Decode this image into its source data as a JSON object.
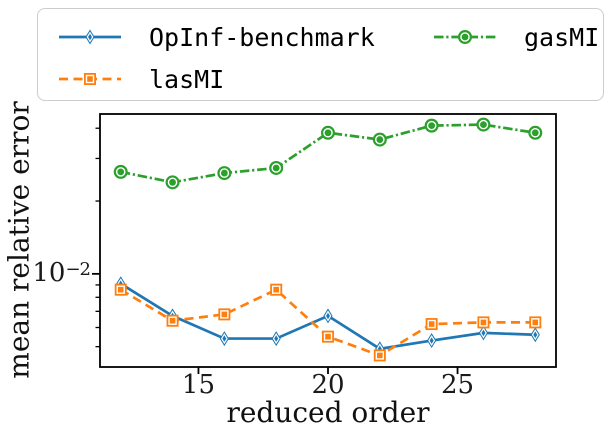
{
  "figure": {
    "background": "#ffffff"
  },
  "legend": {
    "border_color": "#cccccc",
    "position": "upper center, above axes"
  },
  "chart_data": {
    "type": "line",
    "title": "",
    "xlabel": "reduced order",
    "ylabel": "mean relative error",
    "x_scale": "linear",
    "y_scale": "log",
    "grid": false,
    "xlim": [
      11.2,
      28.8
    ],
    "ylim": [
      0.00412,
      0.0458
    ],
    "x_ticks": [
      15,
      20,
      25
    ],
    "y_major_ticks": [
      0.01
    ],
    "y_tick_label": {
      "base": "10",
      "exp": "−2"
    },
    "y_minor_ticks": [
      0.005,
      0.006,
      0.007,
      0.008,
      0.009,
      0.02,
      0.03,
      0.04
    ],
    "x": [
      12,
      14,
      16,
      18,
      20,
      22,
      24,
      26,
      28
    ],
    "series": [
      {
        "name": "OpInf-benchmark",
        "color": "#1f77b4",
        "line": "solid",
        "marker": "thin-diamond",
        "values": [
          0.0091,
          0.0067,
          0.0054,
          0.0054,
          0.0067,
          0.0049,
          0.0053,
          0.0057,
          0.0056
        ]
      },
      {
        "name": "lasMI",
        "color": "#ff7f0e",
        "line": "dashed",
        "marker": "square",
        "values": [
          0.0086,
          0.0064,
          0.0068,
          0.0086,
          0.0055,
          0.0046,
          0.0062,
          0.0063,
          0.0063
        ]
      },
      {
        "name": "gasMI",
        "color": "#2ca02c",
        "line": "dashdot",
        "marker": "circle",
        "values": [
          0.0264,
          0.0239,
          0.0261,
          0.0274,
          0.0383,
          0.0359,
          0.041,
          0.0414,
          0.0383
        ]
      }
    ]
  }
}
